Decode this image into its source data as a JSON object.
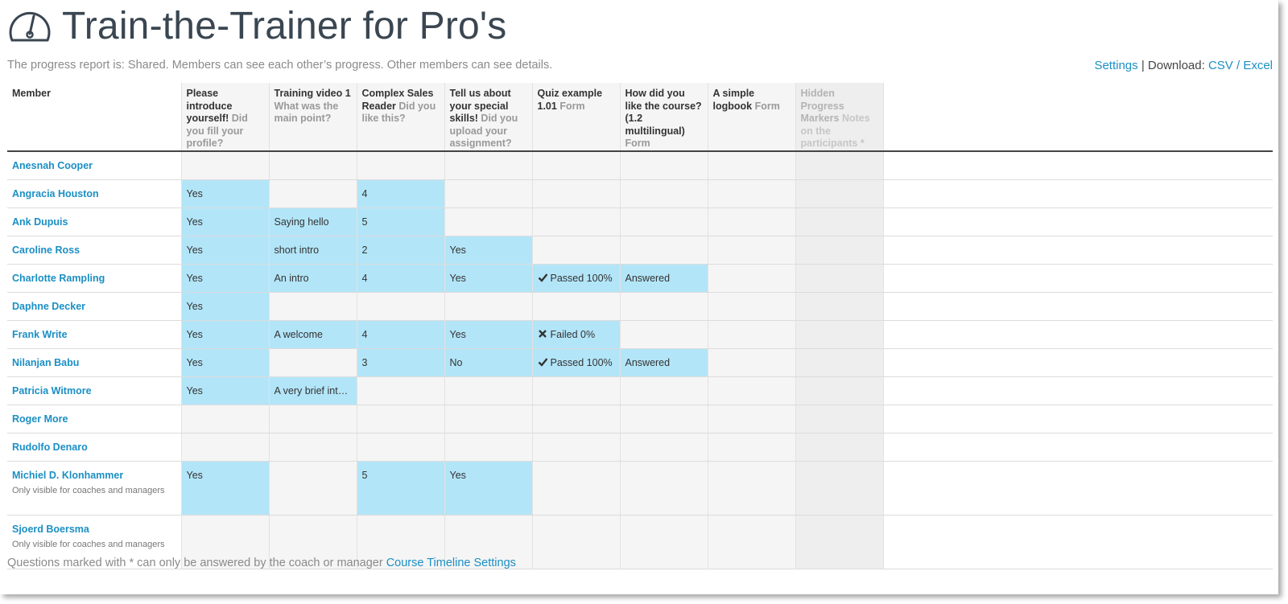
{
  "page": {
    "title": "Train-the-Trainer for Pro's",
    "subtitle": "The progress report is: Shared. Members can see each other’s progress. Other members can see details.",
    "settings_link": "Settings",
    "download_sep": "| Download:",
    "csv_link": "CSV",
    "slash": "/",
    "excel_link": "Excel"
  },
  "columns": {
    "member": "Member",
    "q1": {
      "title": "Please introduce yourself!",
      "sub": "Did you fill your profile?"
    },
    "q2": {
      "title": "Training video 1",
      "sub": "What was the main point?"
    },
    "q3": {
      "title": "Complex Sales Reader",
      "sub": "Did you like this?"
    },
    "q4": {
      "title": "Tell us about your special skills!",
      "sub": "Did you upload your assignment?"
    },
    "q5": {
      "title": "Quiz example 1.01",
      "sub": "Form"
    },
    "q6": {
      "title": "How did you like the course? (1.2 multilingual)",
      "sub": "Form"
    },
    "q7": {
      "title": "A simple logbook",
      "sub": "Form"
    },
    "q8": {
      "title": "Hidden Progress Markers",
      "sub": "Notes on the participants *"
    }
  },
  "rows": [
    {
      "name": "Anesnah Cooper",
      "note": "",
      "cells": [
        {
          "v": "",
          "on": false
        },
        {
          "v": "",
          "on": false
        },
        {
          "v": "",
          "on": false
        },
        {
          "v": "",
          "on": false
        },
        {
          "v": "",
          "on": false
        },
        {
          "v": "",
          "on": false
        },
        {
          "v": "",
          "on": false
        },
        {
          "v": "",
          "on": false
        }
      ]
    },
    {
      "name": "Angracia Houston",
      "note": "",
      "cells": [
        {
          "v": "Yes",
          "on": true
        },
        {
          "v": "",
          "on": false
        },
        {
          "v": "4",
          "on": true
        },
        {
          "v": "",
          "on": false
        },
        {
          "v": "",
          "on": false
        },
        {
          "v": "",
          "on": false
        },
        {
          "v": "",
          "on": false
        },
        {
          "v": "",
          "on": false
        }
      ]
    },
    {
      "name": "Ank Dupuis",
      "note": "",
      "cells": [
        {
          "v": "Yes",
          "on": true
        },
        {
          "v": "Saying hello",
          "on": true
        },
        {
          "v": "5",
          "on": true
        },
        {
          "v": "",
          "on": false
        },
        {
          "v": "",
          "on": false
        },
        {
          "v": "",
          "on": false
        },
        {
          "v": "",
          "on": false
        },
        {
          "v": "",
          "on": false
        }
      ]
    },
    {
      "name": "Caroline Ross",
      "note": "",
      "cells": [
        {
          "v": "Yes",
          "on": true
        },
        {
          "v": "short intro",
          "on": true
        },
        {
          "v": "2",
          "on": true
        },
        {
          "v": "Yes",
          "on": true
        },
        {
          "v": "",
          "on": false
        },
        {
          "v": "",
          "on": false
        },
        {
          "v": "",
          "on": false
        },
        {
          "v": "",
          "on": false
        }
      ]
    },
    {
      "name": "Charlotte Rampling",
      "note": "",
      "cells": [
        {
          "v": "Yes",
          "on": true
        },
        {
          "v": "An intro",
          "on": true
        },
        {
          "v": "4",
          "on": true
        },
        {
          "v": "Yes",
          "on": true
        },
        {
          "v": "Passed 100%",
          "on": true,
          "icon": "check-icon"
        },
        {
          "v": "Answered",
          "on": true
        },
        {
          "v": "",
          "on": false
        },
        {
          "v": "",
          "on": false
        }
      ]
    },
    {
      "name": "Daphne Decker",
      "note": "",
      "cells": [
        {
          "v": "Yes",
          "on": true
        },
        {
          "v": "",
          "on": false
        },
        {
          "v": "",
          "on": false
        },
        {
          "v": "",
          "on": false
        },
        {
          "v": "",
          "on": false
        },
        {
          "v": "",
          "on": false
        },
        {
          "v": "",
          "on": false
        },
        {
          "v": "",
          "on": false
        }
      ]
    },
    {
      "name": "Frank Write",
      "note": "",
      "cells": [
        {
          "v": "Yes",
          "on": true
        },
        {
          "v": "A welcome",
          "on": true
        },
        {
          "v": "4",
          "on": true
        },
        {
          "v": "Yes",
          "on": true
        },
        {
          "v": "Failed 0%",
          "on": true,
          "icon": "cross-icon"
        },
        {
          "v": "",
          "on": false
        },
        {
          "v": "",
          "on": false
        },
        {
          "v": "",
          "on": false
        }
      ]
    },
    {
      "name": "Nilanjan Babu",
      "note": "",
      "cells": [
        {
          "v": "Yes",
          "on": true
        },
        {
          "v": "",
          "on": false
        },
        {
          "v": "3",
          "on": true
        },
        {
          "v": "No",
          "on": true
        },
        {
          "v": "Passed 100%",
          "on": true,
          "icon": "check-icon"
        },
        {
          "v": "Answered",
          "on": true
        },
        {
          "v": "",
          "on": false
        },
        {
          "v": "",
          "on": false
        }
      ]
    },
    {
      "name": "Patricia Witmore",
      "note": "",
      "cells": [
        {
          "v": "Yes",
          "on": true
        },
        {
          "v": "A very brief int…",
          "on": true
        },
        {
          "v": "",
          "on": false
        },
        {
          "v": "",
          "on": false
        },
        {
          "v": "",
          "on": false
        },
        {
          "v": "",
          "on": false
        },
        {
          "v": "",
          "on": false
        },
        {
          "v": "",
          "on": false
        }
      ]
    },
    {
      "name": "Roger More",
      "note": "",
      "cells": [
        {
          "v": "",
          "on": false
        },
        {
          "v": "",
          "on": false
        },
        {
          "v": "",
          "on": false
        },
        {
          "v": "",
          "on": false
        },
        {
          "v": "",
          "on": false
        },
        {
          "v": "",
          "on": false
        },
        {
          "v": "",
          "on": false
        },
        {
          "v": "",
          "on": false
        }
      ]
    },
    {
      "name": "Rudolfo Denaro",
      "note": "",
      "cells": [
        {
          "v": "",
          "on": false
        },
        {
          "v": "",
          "on": false
        },
        {
          "v": "",
          "on": false
        },
        {
          "v": "",
          "on": false
        },
        {
          "v": "",
          "on": false
        },
        {
          "v": "",
          "on": false
        },
        {
          "v": "",
          "on": false
        },
        {
          "v": "",
          "on": false
        }
      ]
    },
    {
      "name": "Michiel D. Klonhammer",
      "note": "Only visible for coaches and managers",
      "cells": [
        {
          "v": "Yes",
          "on": true
        },
        {
          "v": "",
          "on": false
        },
        {
          "v": "5",
          "on": true
        },
        {
          "v": "Yes",
          "on": true
        },
        {
          "v": "",
          "on": false
        },
        {
          "v": "",
          "on": false
        },
        {
          "v": "",
          "on": false
        },
        {
          "v": "",
          "on": false
        }
      ]
    },
    {
      "name": "Sjoerd Boersma",
      "note": "Only visible for coaches and managers",
      "cells": [
        {
          "v": "",
          "on": false
        },
        {
          "v": "",
          "on": false
        },
        {
          "v": "",
          "on": false
        },
        {
          "v": "",
          "on": false
        },
        {
          "v": "",
          "on": false
        },
        {
          "v": "",
          "on": false
        },
        {
          "v": "",
          "on": false
        },
        {
          "v": "",
          "on": false
        }
      ]
    }
  ],
  "footer": {
    "text": "Questions marked with * can only be answered by the coach or manager",
    "link": "Course Timeline Settings"
  },
  "colors": {
    "link": "#1b8fc4",
    "highlight": "#b3e5f8",
    "cell": "#f5f5f5",
    "hidden_col": "#eeeeee",
    "title": "#3a4651"
  }
}
